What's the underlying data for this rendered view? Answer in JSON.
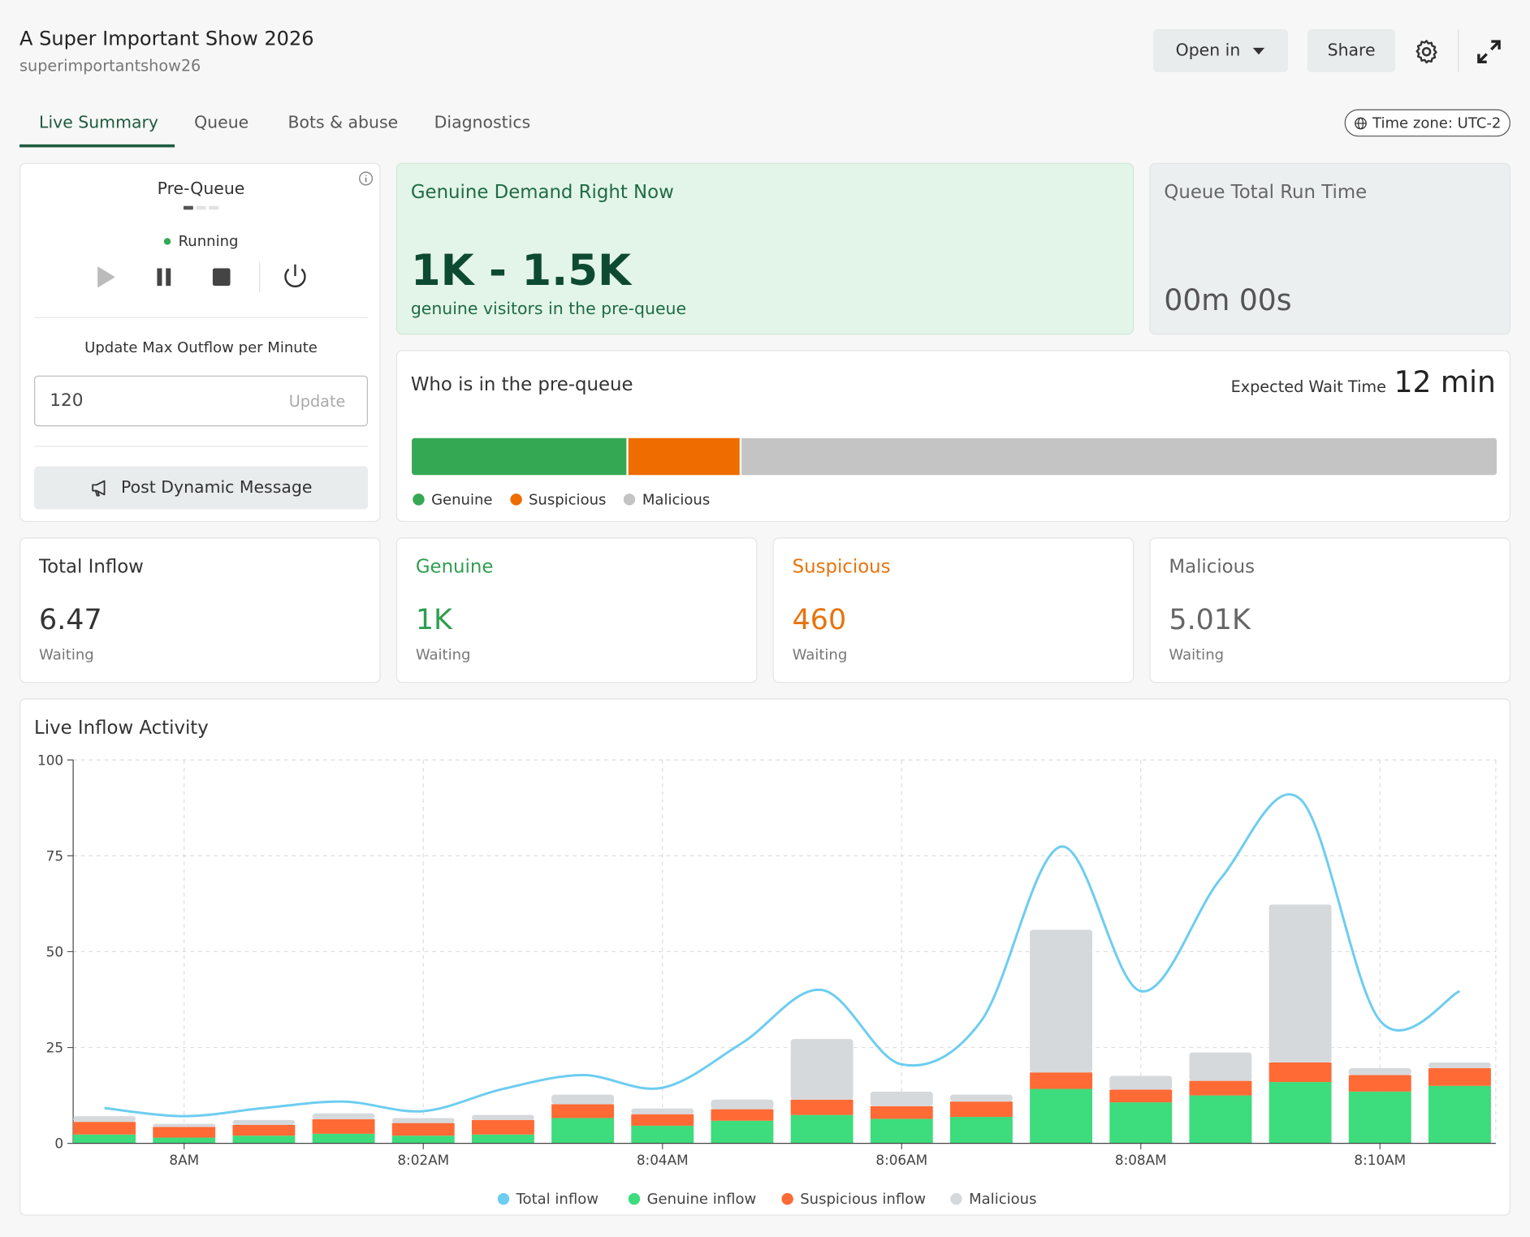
{
  "header": {
    "title": "A Super Important Show 2026",
    "subtitle": "superimportantshow26"
  },
  "actions": [
    "Open in",
    "Share"
  ],
  "tabs": [
    "Live Summary",
    "Queue",
    "Bots & abuse",
    "Diagnostics"
  ],
  "time_zone": "Time zone: UTC-2",
  "pre_queue": {
    "title": "Pre-Queue",
    "status": "Running",
    "outflow_label": "Update Max Outflow per Minute",
    "outflow_value": "120",
    "update_button": "Update",
    "message_button": "Post Dynamic Message"
  },
  "demand": {
    "title": "Genuine Demand Right Now",
    "value": "1K - 1.5K",
    "caption": "genuine visitors in the pre-queue"
  },
  "run_time": {
    "title": "Queue Total Run Time",
    "value": "00m 00s"
  },
  "composition": {
    "title": "Who is in the pre-queue",
    "wait_label": "Expected Wait Time",
    "wait_value": "12 min",
    "segments": [
      {
        "name": "Genuine",
        "color": "#35a853",
        "value": 20
      },
      {
        "name": "Suspicious",
        "color": "#ee6c00",
        "value": 10.4
      },
      {
        "name": "Malicious",
        "color": "#c4c4c4",
        "value": 69.6
      }
    ]
  },
  "stats": [
    {
      "title": "Total Inflow",
      "value": "6.47",
      "caption": "Waiting",
      "color": "#333333"
    },
    {
      "title": "Genuine",
      "value": "1K",
      "caption": "Waiting",
      "color": "#2f9e4f"
    },
    {
      "title": "Suspicious",
      "value": "460",
      "caption": "Waiting",
      "color": "#e8730c"
    },
    {
      "title": "Malicious",
      "value": "5.01K",
      "caption": "Waiting",
      "color": "#666666"
    }
  ],
  "chart_data": {
    "type": "bar",
    "title": "Live Inflow Activity",
    "stacked": true,
    "grid": true,
    "categories": [
      null,
      "8AM",
      null,
      null,
      "8:02AM",
      null,
      null,
      "8:04AM",
      null,
      null,
      "8:06AM",
      null,
      null,
      "8:08AM",
      null,
      null,
      "8:10AM",
      null
    ],
    "series": [
      {
        "name": "Total inflow",
        "type": "line",
        "color": "#6dcdf0",
        "values": [
          9.2,
          7.1,
          9.2,
          10.9,
          8.4,
          14.2,
          17.8,
          14.5,
          26.2,
          40,
          20.6,
          32,
          77.4,
          39.7,
          69,
          89.8,
          32,
          39.7
        ]
      },
      {
        "name": "Genuine inflow",
        "color": "#3ddc7c",
        "values": [
          2.3,
          1.5,
          2,
          2.5,
          2,
          2.3,
          6.6,
          4.6,
          5.9,
          7.4,
          6.4,
          6.9,
          14.2,
          10.7,
          12.5,
          16,
          13.5,
          15
        ]
      },
      {
        "name": "Suspicious inflow",
        "color": "#ff6a35",
        "values": [
          3.3,
          2.8,
          2.8,
          3.8,
          3.3,
          3.8,
          3.6,
          3,
          3,
          4,
          3.3,
          4,
          4.3,
          3.3,
          3.8,
          5.1,
          4.3,
          4.6
        ]
      },
      {
        "name": "Malicious",
        "color": "#d5d9dc",
        "values": [
          1.5,
          0.8,
          1.3,
          1.5,
          1.3,
          1.3,
          2.5,
          1.5,
          2.5,
          15.8,
          3.8,
          1.8,
          37.2,
          3.6,
          7.4,
          41.2,
          1.8,
          1.5
        ]
      }
    ],
    "ylim": [
      0,
      100
    ],
    "yticks": [
      0,
      25,
      50,
      75,
      100
    ]
  }
}
